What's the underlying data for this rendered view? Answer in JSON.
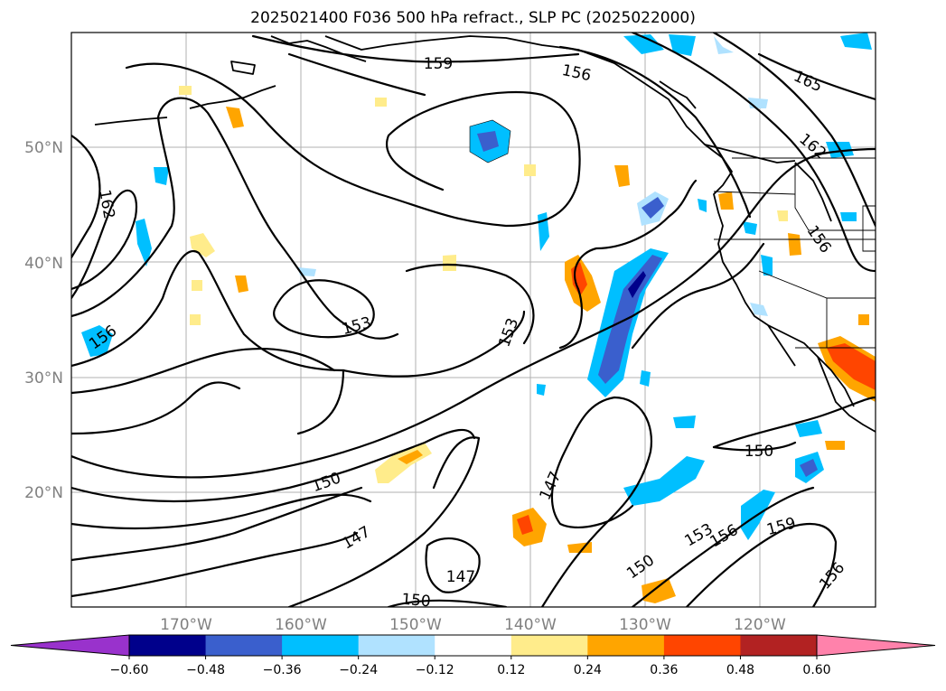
{
  "title": "2025021400 F036 500 hPa refract., SLP PC (2025022000)",
  "colors": {
    "neg_060_below": "#9932cc",
    "neg_060_048": "#00008b",
    "neg_048_036": "#3a5fcd",
    "neg_036_024": "#00bfff",
    "neg_024_012": "#b0e2ff",
    "neutral": "#ffffff",
    "pos_012_024": "#ffec8b",
    "pos_024_036": "#ffa500",
    "pos_036_048": "#ff4500",
    "pos_048_060": "#b22222",
    "pos_060_above": "#ff82ab"
  },
  "map": {
    "lon_labels": [
      "170°W",
      "160°W",
      "150°W",
      "140°W",
      "130°W",
      "120°W"
    ],
    "lat_labels": [
      "50°N",
      "40°N",
      "30°N",
      "20°N"
    ],
    "contour_labels": [
      "159",
      "156",
      "165",
      "162",
      "162",
      "156",
      "156",
      "153",
      "153",
      "150",
      "147",
      "147",
      "150",
      "147",
      "150",
      "153",
      "156",
      "159",
      "156",
      "150"
    ]
  },
  "colorbar": {
    "ticks": [
      "−0.60",
      "−0.48",
      "−0.36",
      "−0.24",
      "−0.12",
      "0.12",
      "0.24",
      "0.36",
      "0.48",
      "0.60"
    ]
  }
}
